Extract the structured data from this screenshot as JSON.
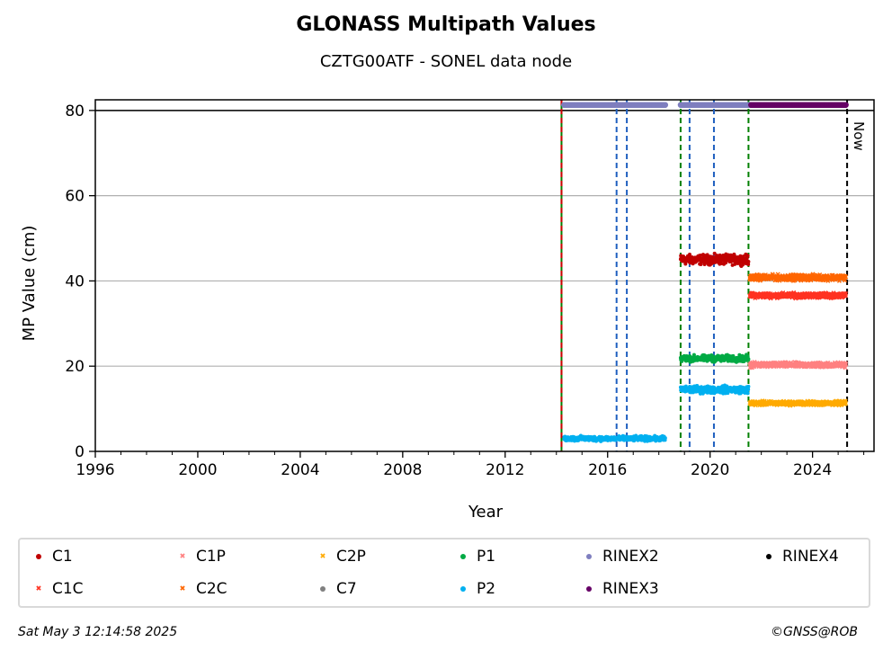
{
  "chart_data": {
    "type": "scatter",
    "title": "GLONASS Multipath Values",
    "subtitle": "CZTG00ATF - SONEL data node",
    "xlabel": "Year",
    "ylabel": "MP Value (cm)",
    "xlim": [
      1996,
      2026.4
    ],
    "ylim": [
      0,
      82.5
    ],
    "xticks": [
      "1996",
      "2000",
      "2004",
      "2008",
      "2012",
      "2016",
      "2020",
      "2024"
    ],
    "yticks": [
      "0",
      "20",
      "40",
      "60",
      "80"
    ],
    "grid": "horizontal",
    "reference_line_y": 80,
    "series": [
      {
        "name": "C1",
        "color": "#c00000",
        "marker": "dot",
        "segments": [
          {
            "from": 2018.85,
            "to": 2021.5,
            "value": 45,
            "noise": 1.2
          }
        ]
      },
      {
        "name": "C1C",
        "color": "#ff3322",
        "marker": "x",
        "segments": [
          {
            "from": 2021.55,
            "to": 2025.3,
            "value": 36.6,
            "noise": 0.6
          }
        ]
      },
      {
        "name": "C1P",
        "color": "#ff8080",
        "marker": "x",
        "segments": [
          {
            "from": 2021.55,
            "to": 2025.3,
            "value": 20.3,
            "noise": 0.6
          }
        ]
      },
      {
        "name": "C2C",
        "color": "#ff6600",
        "marker": "x",
        "segments": [
          {
            "from": 2021.55,
            "to": 2025.3,
            "value": 40.8,
            "noise": 0.7
          }
        ]
      },
      {
        "name": "C2P",
        "color": "#ffaa00",
        "marker": "x",
        "segments": [
          {
            "from": 2021.55,
            "to": 2025.3,
            "value": 11.3,
            "noise": 0.5
          }
        ]
      },
      {
        "name": "C7",
        "color": "#808080",
        "marker": "dot",
        "segments": []
      },
      {
        "name": "P1",
        "color": "#00aa44",
        "marker": "dot",
        "segments": [
          {
            "from": 2018.85,
            "to": 2021.5,
            "value": 21.8,
            "noise": 0.8
          }
        ]
      },
      {
        "name": "P2",
        "color": "#00b0f0",
        "marker": "dot",
        "segments": [
          {
            "from": 2014.3,
            "to": 2018.25,
            "value": 3.0,
            "noise": 0.6
          },
          {
            "from": 2018.85,
            "to": 2021.5,
            "value": 14.5,
            "noise": 0.9
          }
        ]
      },
      {
        "name": "RINEX2",
        "color": "#7f7fbf",
        "marker": "dot",
        "segments": [
          {
            "from": 2014.3,
            "to": 2018.25,
            "value": 81.3,
            "noise": 0
          },
          {
            "from": 2018.85,
            "to": 2021.6,
            "value": 81.3,
            "noise": 0
          }
        ]
      },
      {
        "name": "RINEX3",
        "color": "#660066",
        "marker": "dot",
        "segments": [
          {
            "from": 2021.6,
            "to": 2025.3,
            "value": 81.3,
            "noise": 0
          }
        ]
      },
      {
        "name": "RINEX4",
        "color": "#000000",
        "marker": "dot",
        "segments": []
      }
    ],
    "event_lines": [
      {
        "x": 2014.2,
        "color": "#008000",
        "style": "solid"
      },
      {
        "x": 2014.2,
        "color": "#cc0000",
        "style": "dashed"
      },
      {
        "x": 2016.35,
        "color": "#1f5fbf",
        "style": "dashed"
      },
      {
        "x": 2016.75,
        "color": "#1f5fbf",
        "style": "dashed"
      },
      {
        "x": 2018.85,
        "color": "#008000",
        "style": "dashed"
      },
      {
        "x": 2019.2,
        "color": "#1f5fbf",
        "style": "dashed"
      },
      {
        "x": 2020.15,
        "color": "#1f5fbf",
        "style": "dashed"
      },
      {
        "x": 2021.5,
        "color": "#008000",
        "style": "dashed"
      },
      {
        "x": 2025.35,
        "color": "#000000",
        "style": "dashed"
      }
    ],
    "now_label": "Now",
    "legend_placement": "bottom"
  },
  "footer": {
    "date": "Sat May  3 12:14:58 2025",
    "credit": "©GNSS@ROB"
  }
}
